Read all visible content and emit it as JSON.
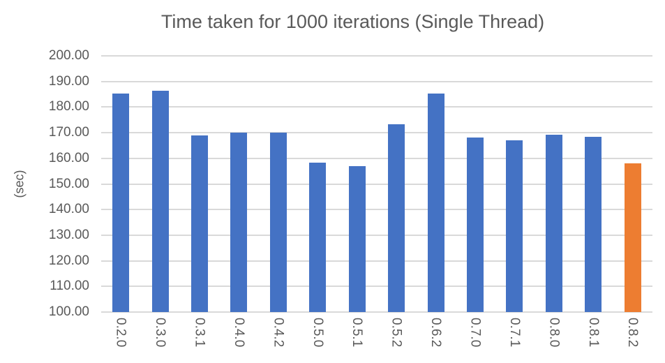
{
  "chart_data": {
    "type": "bar",
    "title": "Time taken for 1000 iterations (Single Thread)",
    "ylabel": "(sec)",
    "xlabel": "",
    "categories": [
      "0.2.0",
      "0.3.0",
      "0.3.1",
      "0.4.0",
      "0.4.2",
      "0.5.0",
      "0.5.1",
      "0.5.2",
      "0.6.2",
      "0.7.0",
      "0.7.1",
      "0.8.0",
      "0.8.1",
      "0.8.2"
    ],
    "values": [
      185.4,
      186.5,
      168.9,
      169.9,
      170.1,
      158.4,
      156.9,
      173.2,
      185.4,
      168.2,
      167.1,
      169.1,
      168.5,
      158.0
    ],
    "ylim": [
      100,
      200
    ],
    "ytick_step": 10,
    "yticks": [
      "200.00",
      "190.00",
      "180.00",
      "170.00",
      "160.00",
      "150.00",
      "140.00",
      "130.00",
      "120.00",
      "110.00",
      "100.00"
    ],
    "grid": true,
    "legend": "none",
    "bar_color_default": "#4472C4",
    "bar_color_highlight": "#ED7D31",
    "highlight_index": 13,
    "gridline_color": "#D9D9D9",
    "text_color": "#595959"
  }
}
